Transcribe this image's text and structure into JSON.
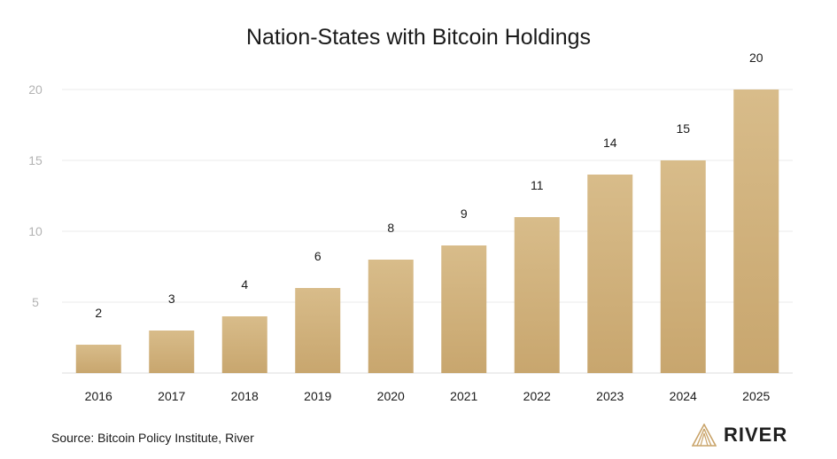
{
  "chart_data": {
    "type": "bar",
    "title": "Nation-States with Bitcoin Holdings",
    "categories": [
      "2016",
      "2017",
      "2018",
      "2019",
      "2020",
      "2021",
      "2022",
      "2023",
      "2024",
      "2025"
    ],
    "series": [
      {
        "values": [
          2,
          3,
          4,
          6,
          8,
          9,
          11,
          14,
          15,
          20
        ]
      }
    ],
    "ylim": [
      0,
      20
    ],
    "yticks": [
      5,
      10,
      15,
      20
    ],
    "xlabel": "",
    "ylabel": "",
    "grid": true,
    "data_labels": true,
    "colors": {
      "bar_top": "#d8bc8a",
      "bar_bottom": "#c8a66e",
      "grid": "#ebebeb"
    }
  },
  "source": "Source: Bitcoin Policy Institute, River",
  "brand": {
    "name": "RIVER",
    "logo_icon": "river-mountain-icon",
    "color": "#c9a46a"
  }
}
